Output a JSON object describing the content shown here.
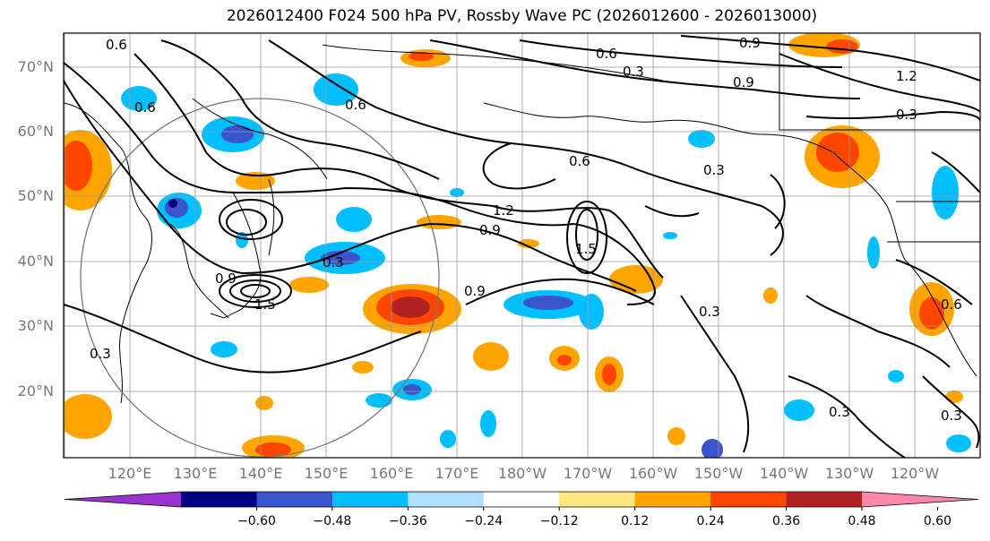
{
  "title": "2026012400 F024 500 hPa PV, Rossby Wave PC (2026012600 - 2026013000)",
  "lat_labels": [
    "70°N",
    "60°N",
    "50°N",
    "40°N",
    "30°N",
    "20°N"
  ],
  "lon_labels": [
    "120°E",
    "130°E",
    "140°E",
    "150°E",
    "160°E",
    "170°E",
    "180°W",
    "170°W",
    "160°W",
    "150°W",
    "140°W",
    "130°W",
    "120°W"
  ],
  "contour_labels": [
    "0.6",
    "0.9",
    "0.6",
    "0.3",
    "0.9",
    "1.2",
    "0.3",
    "0.6",
    "0.6",
    "0.6",
    "0.3",
    "1.2",
    "0.9",
    "1.5",
    "0.9",
    "0.3",
    "0.9",
    "0.3",
    "0.3",
    "0.3",
    "0.6",
    "0.3",
    "1.5"
  ],
  "colorbar": {
    "ticks": [
      "−0.60",
      "−0.48",
      "−0.36",
      "−0.24",
      "−0.12",
      "0.12",
      "0.24",
      "0.36",
      "0.48",
      "0.60"
    ],
    "colors": [
      "#9933cc",
      "#000080",
      "#3a54cc",
      "#00bfff",
      "#b0e0ff",
      "#ffffff",
      "#ffe680",
      "#ffa500",
      "#ff4500",
      "#b22222",
      "#ff88aa"
    ]
  }
}
